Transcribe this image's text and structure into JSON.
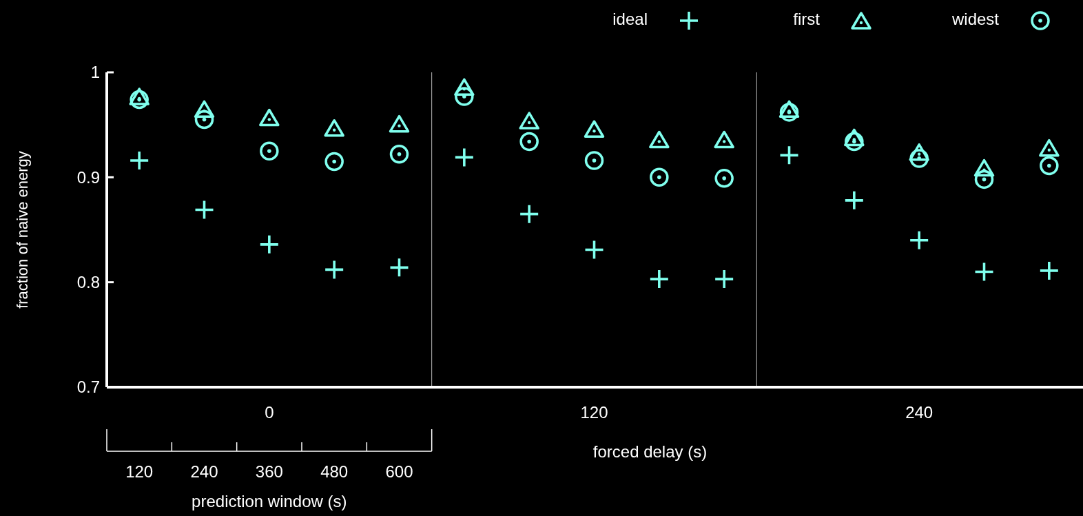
{
  "chart_data": {
    "type": "scatter",
    "xlabel": "forced delay (s)",
    "ylabel": "fraction of naive energy",
    "categories": [
      null,
      null,
      "0",
      null,
      null,
      null,
      null,
      "120",
      null,
      null,
      null,
      null,
      "240",
      null,
      null
    ],
    "ylim": [
      0.7,
      1
    ],
    "yticks": [
      0.7,
      0.8,
      0.9,
      1
    ],
    "legend": "top right",
    "grid": false,
    "annotations": [
      "120",
      "240",
      "360",
      "480",
      "600",
      "prediction window (s)"
    ],
    "series": [
      {
        "name": "ideal",
        "color": "#80ffee",
        "marker": "cross",
        "values": [
          0.916,
          0.869,
          0.836,
          0.812,
          0.814,
          0.919,
          0.865,
          0.831,
          0.803,
          0.803,
          0.921,
          0.878,
          0.84,
          0.81,
          0.811
        ]
      },
      {
        "name": "first",
        "color": "#80ffee",
        "marker": "triangle",
        "values": [
          0.977,
          0.965,
          0.957,
          0.947,
          0.951,
          0.986,
          0.954,
          0.946,
          0.936,
          0.936,
          0.965,
          0.938,
          0.924,
          0.909,
          0.928
        ]
      },
      {
        "name": "widest",
        "color": "#80ffee",
        "marker": "circle",
        "values": [
          0.974,
          0.955,
          0.925,
          0.915,
          0.922,
          0.977,
          0.934,
          0.916,
          0.9,
          0.899,
          0.962,
          0.934,
          0.918,
          0.898,
          0.911
        ]
      }
    ]
  }
}
